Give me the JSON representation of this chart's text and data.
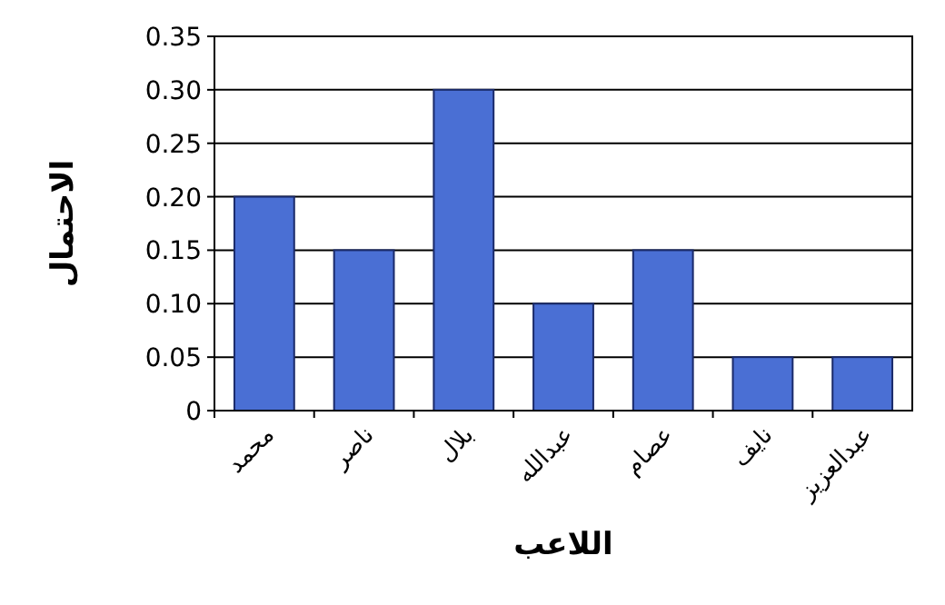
{
  "chart_data": {
    "type": "bar",
    "xlabel": "اللاعب",
    "ylabel": "الاحتمال",
    "categories": [
      "محمد",
      "ناصر",
      "بلال",
      "عبدالله",
      "عصام",
      "نايف",
      "عبدالعزيز"
    ],
    "values": [
      0.2,
      0.15,
      0.3,
      0.1,
      0.15,
      0.05,
      0.05
    ],
    "color": "#4a6fd4",
    "ylim": [
      0,
      0.35
    ],
    "yticks": [
      0,
      {
        "value": 0.05,
        "label": "0.05"
      },
      {
        "value": 0.1,
        "label": "0.10"
      },
      {
        "value": 0.15,
        "label": "0.15"
      },
      {
        "value": 0.2,
        "label": "0.20"
      },
      {
        "value": 0.25,
        "label": "0.25"
      },
      {
        "value": 0.3,
        "label": "0.30"
      },
      {
        "value": 0.35,
        "label": "0.35"
      }
    ],
    "grid": "y"
  }
}
